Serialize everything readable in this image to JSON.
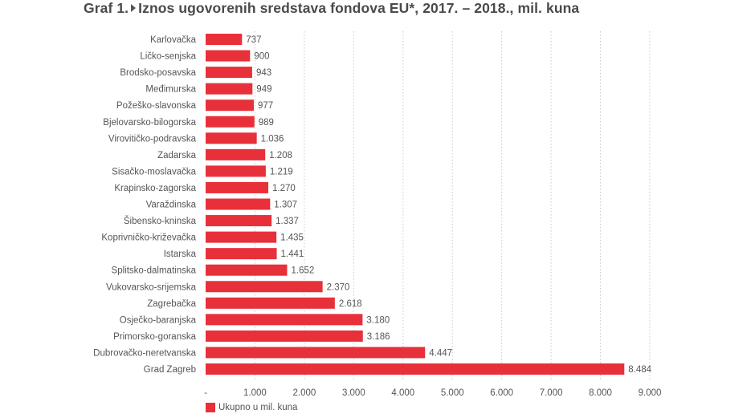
{
  "title": {
    "prefix": "Graf 1.",
    "text": "Iznos ugovorenih sredstava fondova EU*, 2017. – 2018., mil. kuna"
  },
  "colors": {
    "bar": "#e8303a",
    "grid": "#c9c9c9",
    "text": "#555555"
  },
  "chart_data": {
    "type": "bar",
    "orientation": "horizontal",
    "title": "Iznos ugovorenih sredstava fondova EU*, 2017. – 2018., mil. kuna",
    "categories": [
      "Karlovačka",
      "Ličko-senjska",
      "Brodsko-posavska",
      "Međimurska",
      "Požeško-slavonska",
      "Bjelovarsko-bilogorska",
      "Virovitičko-podravska",
      "Zadarska",
      "Sisačko-moslavačka",
      "Krapinsko-zagorska",
      "Varaždinska",
      "Šibensko-kninska",
      "Koprivničko-križevačka",
      "Istarska",
      "Splitsko-dalmatinska",
      "Vukovarsko-srijemska",
      "Zagrebačka",
      "Osječko-baranjska",
      "Primorsko-goranska",
      "Dubrovačko-neretvanska",
      "Grad Zagreb"
    ],
    "values": [
      737,
      900,
      943,
      949,
      977,
      989,
      1036,
      1208,
      1219,
      1270,
      1307,
      1337,
      1435,
      1441,
      1652,
      2370,
      2618,
      3180,
      3186,
      4447,
      8484
    ],
    "value_labels": [
      "737",
      "900",
      "943",
      "949",
      "977",
      "989",
      "1.036",
      "1.208",
      "1.219",
      "1.270",
      "1.307",
      "1.337",
      "1.435",
      "1.441",
      "1.652",
      "2.370",
      "2.618",
      "3.180",
      "3.186",
      "4.447",
      "8.484"
    ],
    "xlim": [
      0,
      9000
    ],
    "xticks": [
      0,
      1000,
      2000,
      3000,
      4000,
      5000,
      6000,
      7000,
      8000,
      9000
    ],
    "xtick_labels": [
      "-",
      "1.000",
      "2.000",
      "3.000",
      "4.000",
      "5.000",
      "6.000",
      "7.000",
      "8.000",
      "9.000"
    ],
    "xlabel": "",
    "ylabel": "",
    "grid": true,
    "legend": {
      "position": "bottom-left",
      "entries": [
        "Ukupno u mil. kuna"
      ]
    }
  }
}
